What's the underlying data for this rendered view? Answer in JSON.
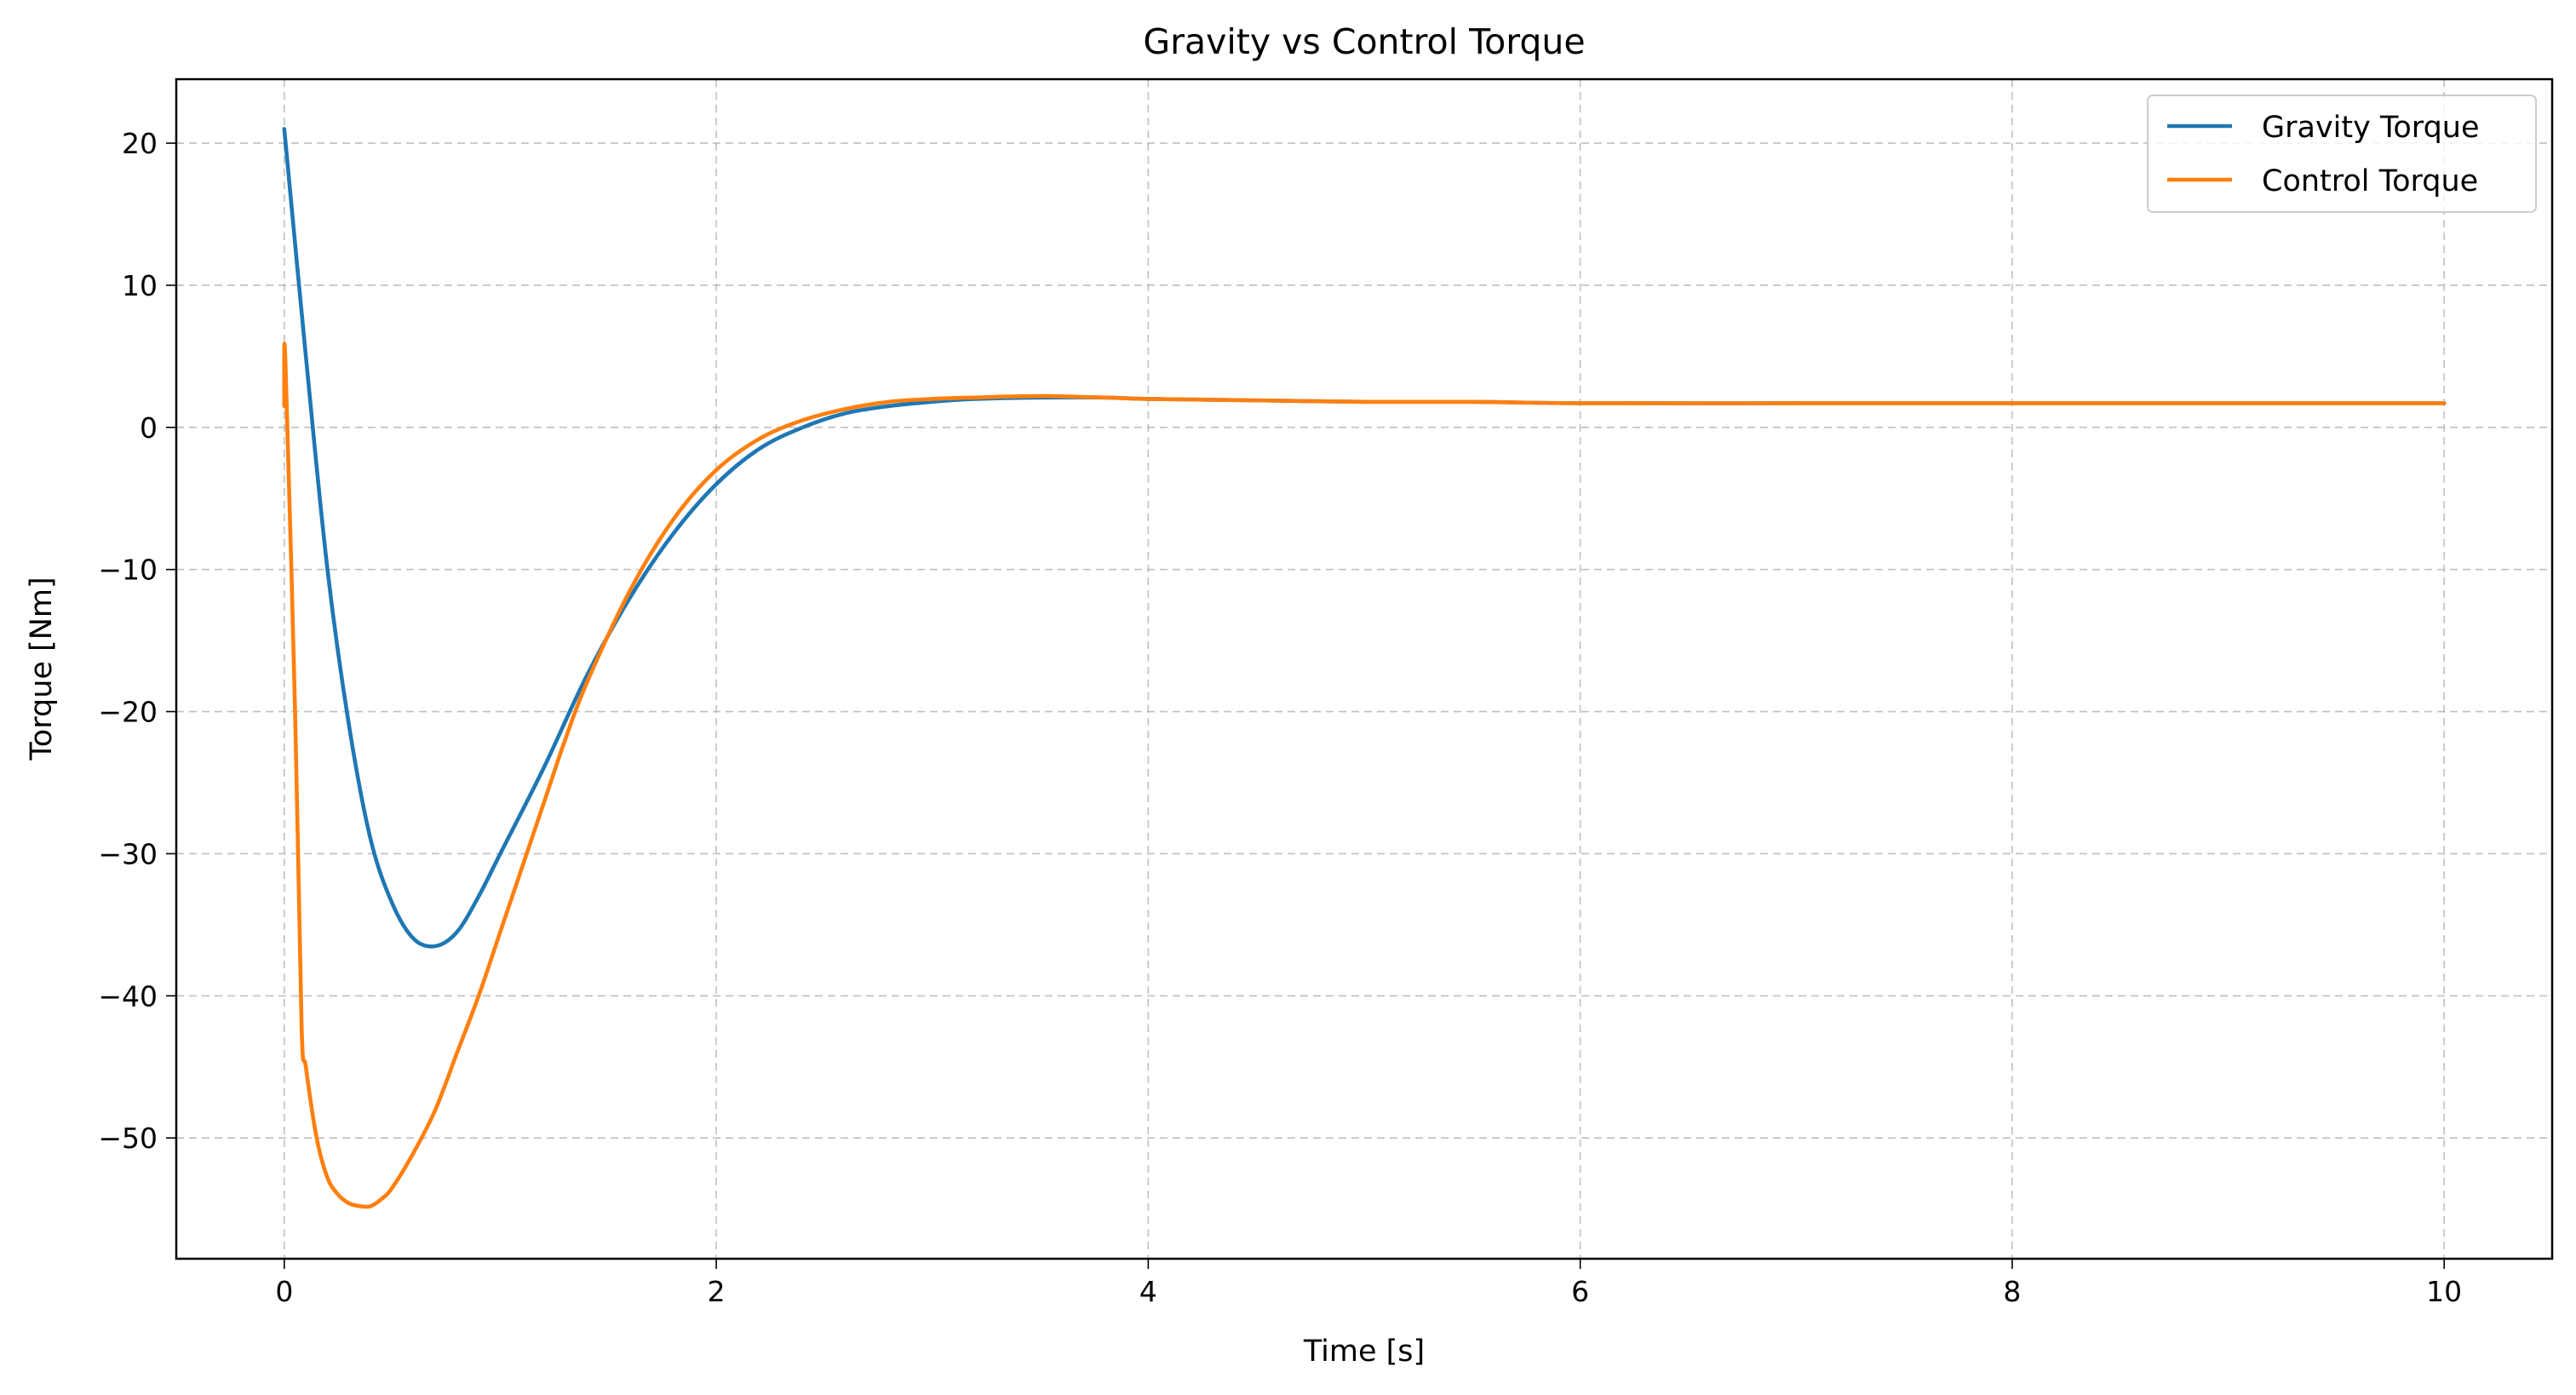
{
  "chart_data": {
    "type": "line",
    "title": "Gravity vs Control Torque",
    "xlabel": "Time [s]",
    "ylabel": "Torque [Nm]",
    "xlim": [
      -0.5,
      10.5
    ],
    "ylim": [
      -58.5,
      24.5
    ],
    "xticks": [
      0,
      2,
      4,
      6,
      8,
      10
    ],
    "xtick_labels": [
      "0",
      "2",
      "4",
      "6",
      "8",
      "10"
    ],
    "yticks": [
      20,
      10,
      0,
      -10,
      -20,
      -30,
      -40,
      -50
    ],
    "ytick_labels": [
      "20",
      "10",
      "0",
      "−10",
      "−20",
      "−30",
      "−40",
      "−50"
    ],
    "grid": true,
    "legend_position": "top-right",
    "series": [
      {
        "name": "Gravity Torque",
        "color": "#1f77b4",
        "x": [
          0,
          0.1,
          0.2,
          0.3,
          0.4,
          0.5,
          0.6,
          0.7,
          0.8,
          0.9,
          1.0,
          1.2,
          1.4,
          1.6,
          1.8,
          2.0,
          2.2,
          2.4,
          2.6,
          2.8,
          3.0,
          3.2,
          3.5,
          3.8,
          4.0,
          4.5,
          5.0,
          5.5,
          6.0,
          7.0,
          8.0,
          9.0,
          10.0
        ],
        "y": [
          21.0,
          5.0,
          -10.0,
          -21.0,
          -29.0,
          -33.5,
          -36.0,
          -36.5,
          -35.5,
          -33.0,
          -30.0,
          -24.0,
          -17.5,
          -12.0,
          -7.5,
          -4.0,
          -1.5,
          0.0,
          1.0,
          1.5,
          1.8,
          2.0,
          2.1,
          2.1,
          2.0,
          1.9,
          1.8,
          1.8,
          1.7,
          1.7,
          1.7,
          1.7,
          1.7
        ]
      },
      {
        "name": "Control Torque",
        "color": "#ff7f0e",
        "x": [
          0,
          0.005,
          0.05,
          0.08,
          0.1,
          0.15,
          0.2,
          0.25,
          0.3,
          0.35,
          0.4,
          0.45,
          0.5,
          0.6,
          0.7,
          0.8,
          0.9,
          1.0,
          1.1,
          1.2,
          1.3,
          1.4,
          1.6,
          1.8,
          2.0,
          2.2,
          2.4,
          2.6,
          2.8,
          3.0,
          3.2,
          3.5,
          3.8,
          4.0,
          4.5,
          5.0,
          5.5,
          6.0,
          7.0,
          8.0,
          9.0,
          10.0
        ],
        "y": [
          1.5,
          4.8,
          -20.0,
          -42.0,
          -45.0,
          -50.0,
          -52.8,
          -54.0,
          -54.6,
          -54.8,
          -54.8,
          -54.3,
          -53.5,
          -51.0,
          -48.0,
          -44.0,
          -40.0,
          -35.5,
          -31.0,
          -26.5,
          -22.0,
          -18.0,
          -11.5,
          -6.5,
          -3.0,
          -0.8,
          0.5,
          1.3,
          1.8,
          2.0,
          2.1,
          2.2,
          2.1,
          2.0,
          1.9,
          1.8,
          1.8,
          1.7,
          1.7,
          1.7,
          1.7,
          1.7
        ]
      }
    ]
  }
}
